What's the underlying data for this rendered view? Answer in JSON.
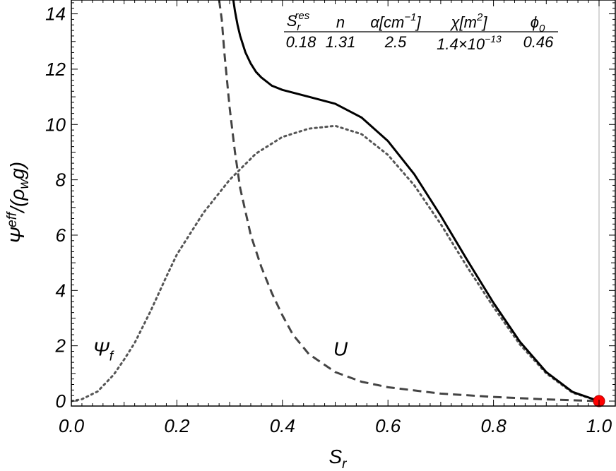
{
  "chart_data": {
    "type": "line",
    "xlabel": "S",
    "xlabel_sub": "r",
    "ylabel_main": "Ψ",
    "ylabel_sup": "eff",
    "ylabel_rest": "/(ρ",
    "ylabel_sub": "w",
    "ylabel_end": "g)",
    "xlim": [
      0,
      1.0
    ],
    "ylim": [
      0,
      14.5
    ],
    "xticks": [
      "0.0",
      "0.2",
      "0.4",
      "0.6",
      "0.8",
      "1.0"
    ],
    "yticks": [
      "0",
      "2",
      "4",
      "6",
      "8",
      "10",
      "12",
      "14"
    ],
    "parameters": {
      "headers": [
        {
          "main": "S",
          "sub": "r",
          "sup": "res"
        },
        {
          "main": "n"
        },
        {
          "main": "α[cm",
          "sup": "−1",
          "end": "]"
        },
        {
          "main": "χ[m",
          "sup": "2",
          "end": "]"
        },
        {
          "main": "ϕ",
          "sub": "0"
        }
      ],
      "values": [
        {
          "text": "0.18"
        },
        {
          "text": "1.31"
        },
        {
          "text": "2.5"
        },
        {
          "text": "1.4×10",
          "sup": "−13"
        },
        {
          "text": "0.46"
        }
      ]
    },
    "annotations": [
      {
        "main": "Ψ",
        "sub": "f",
        "x": 0.06,
        "y": 1.9
      },
      {
        "main": "U",
        "x": 0.51,
        "y": 1.9
      }
    ],
    "series": [
      {
        "style": "dotted",
        "x": [
          0.0,
          0.02,
          0.05,
          0.08,
          0.1,
          0.12,
          0.15,
          0.18,
          0.2,
          0.25,
          0.3,
          0.35,
          0.4,
          0.45,
          0.5,
          0.55,
          0.6,
          0.65,
          0.7,
          0.75,
          0.8,
          0.85,
          0.9,
          0.95,
          1.0
        ],
        "y": [
          0.0,
          0.07,
          0.35,
          0.95,
          1.5,
          2.1,
          3.25,
          4.5,
          5.3,
          6.8,
          8.0,
          8.95,
          9.55,
          9.85,
          9.95,
          9.65,
          8.9,
          7.8,
          6.4,
          4.85,
          3.4,
          2.05,
          1.0,
          0.3,
          0.0
        ]
      },
      {
        "style": "dashed",
        "x": [
          0.28,
          0.285,
          0.29,
          0.3,
          0.31,
          0.32,
          0.34,
          0.36,
          0.38,
          0.4,
          0.42,
          0.45,
          0.5,
          0.55,
          0.6,
          0.7,
          0.8,
          0.9,
          0.95,
          1.0
        ],
        "y": [
          14.5,
          13.8,
          12.6,
          10.6,
          9.0,
          7.7,
          6.0,
          4.85,
          3.9,
          3.1,
          2.4,
          1.7,
          1.05,
          0.7,
          0.5,
          0.27,
          0.15,
          0.06,
          0.03,
          0.0
        ]
      },
      {
        "style": "solid",
        "x": [
          0.307,
          0.31,
          0.315,
          0.32,
          0.33,
          0.34,
          0.35,
          0.36,
          0.38,
          0.4,
          0.42,
          0.45,
          0.5,
          0.55,
          0.6,
          0.65,
          0.7,
          0.75,
          0.8,
          0.85,
          0.9,
          0.95,
          1.0
        ],
        "y": [
          14.5,
          14.1,
          13.6,
          13.2,
          12.6,
          12.2,
          11.9,
          11.7,
          11.4,
          11.25,
          11.15,
          11.0,
          10.75,
          10.25,
          9.4,
          8.2,
          6.7,
          5.1,
          3.55,
          2.15,
          1.05,
          0.33,
          0.0
        ]
      }
    ],
    "marker": {
      "x": 1.0,
      "y": 0.0,
      "color": "#ff0000"
    },
    "ref_line": {
      "x": 1.0,
      "color": "#bbbbbb"
    },
    "colors": {
      "solid": "#000000",
      "dashed": "#444444",
      "dotted": "#555555"
    }
  }
}
